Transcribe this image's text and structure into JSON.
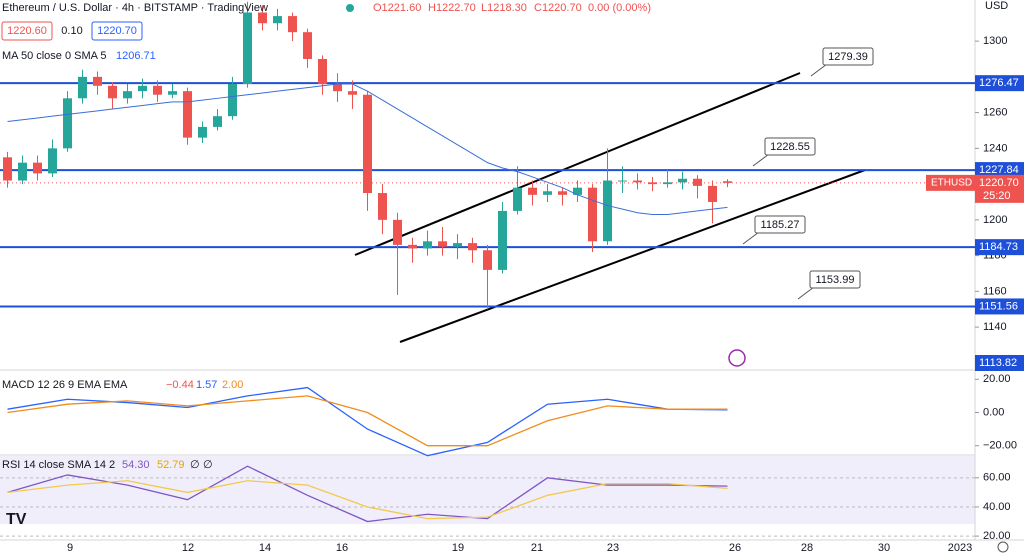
{
  "chart_data": {
    "type": "candlestick",
    "title": "Ethereum / U.S. Dollar · 4h · BITSTAMP · TradingView",
    "ohlc_header": [
      "O1221.60",
      "H1222.70",
      "L1218.30",
      "C1220.70",
      "0.00 (0.00%)"
    ],
    "bid": "1220.60",
    "spread": "0.10",
    "ask": "1220.70",
    "currency": "USD",
    "symbol": "ETHUSD",
    "last_price": "1220.70",
    "countdown": "25:20",
    "low_label": "1113.82",
    "up_color": "#26a69a",
    "down_color": "#ef5350",
    "open": [
      1235,
      1222,
      1232,
      1226,
      1240,
      1268,
      1280,
      1275,
      1268,
      1272,
      1275,
      1270,
      1272,
      1246,
      1252,
      1258,
      1276,
      1316,
      1310,
      1314,
      1305,
      1290,
      1276,
      1272,
      1270,
      1215,
      1200,
      1186,
      1184,
      1188,
      1185,
      1187,
      1183,
      1172,
      1205,
      1218,
      1214,
      1216,
      1214,
      1218,
      1188,
      1222,
      1222,
      1221,
      1220,
      1221,
      1223,
      1219,
      1221.6
    ],
    "high": [
      1238,
      1236,
      1236,
      1245,
      1272,
      1284,
      1283,
      1277,
      1276,
      1279,
      1278,
      1276,
      1274,
      1255,
      1262,
      1280,
      1322,
      1320,
      1318,
      1316,
      1307,
      1292,
      1282,
      1278,
      1272,
      1220,
      1204,
      1190,
      1194,
      1196,
      1192,
      1190,
      1186,
      1210,
      1230,
      1222,
      1220,
      1218,
      1222,
      1220,
      1240,
      1230,
      1226,
      1224,
      1228,
      1227,
      1225,
      1222,
      1222.7
    ],
    "low": [
      1218,
      1220,
      1222,
      1224,
      1238,
      1265,
      1270,
      1262,
      1265,
      1268,
      1266,
      1268,
      1242,
      1243,
      1250,
      1256,
      1274,
      1306,
      1306,
      1300,
      1285,
      1270,
      1266,
      1262,
      1205,
      1192,
      1158,
      1176,
      1180,
      1180,
      1178,
      1176,
      1150,
      1170,
      1203,
      1208,
      1210,
      1208,
      1210,
      1182,
      1186,
      1215,
      1217,
      1216,
      1218,
      1217,
      1212,
      1198,
      1218.3
    ],
    "close": [
      1222,
      1232,
      1226,
      1240,
      1268,
      1280,
      1275,
      1268,
      1272,
      1275,
      1270,
      1272,
      1246,
      1252,
      1258,
      1276,
      1316,
      1310,
      1314,
      1305,
      1290,
      1276,
      1272,
      1270,
      1215,
      1200,
      1186,
      1184,
      1188,
      1185,
      1187,
      1183,
      1172,
      1205,
      1218,
      1214,
      1216,
      1214,
      1218,
      1188,
      1222,
      1222,
      1221,
      1220,
      1221,
      1223,
      1219,
      1210,
      1220.7
    ],
    "ma": {
      "name": "MA 50 close 0 SMA 5",
      "value_label": "1206.71",
      "color": "#3a6fd8",
      "values": [
        1255,
        1256,
        1257,
        1258,
        1259,
        1260,
        1261,
        1262,
        1263,
        1264,
        1265,
        1266,
        1266,
        1267,
        1268,
        1269,
        1270,
        1271,
        1272,
        1273,
        1274,
        1275,
        1276,
        1276,
        1272,
        1267,
        1262,
        1257,
        1252,
        1247,
        1242,
        1237,
        1232,
        1229,
        1227,
        1224,
        1221,
        1218,
        1214,
        1211,
        1208,
        1206,
        1204,
        1203,
        1203,
        1204,
        1205,
        1206,
        1207
      ]
    },
    "ylim": [
      1116,
      1323
    ],
    "yticks": [
      1300,
      1260,
      1240,
      1200,
      1180,
      1160,
      1140
    ],
    "levels": [
      1276.47,
      1227.84,
      1184.73,
      1151.56
    ],
    "level_color": "#1e4fd8",
    "callouts": [
      1279.39,
      1228.55,
      1185.27,
      1153.99
    ],
    "x_labels": [
      "9",
      "12",
      "14",
      "16",
      "19",
      "21",
      "23",
      "26",
      "28",
      "30",
      "2023"
    ],
    "macd": {
      "title": "MACD 12 26 9 EMA EMA",
      "value_labels": [
        "−0.44",
        "1.57",
        "2.00"
      ],
      "ylim": [
        -25,
        25
      ],
      "yticks": [
        {
          "value": 20,
          "label": "20.00"
        },
        {
          "value": 0,
          "label": "0.00"
        },
        {
          "value": -20,
          "label": "−20.00"
        }
      ],
      "series": [
        {
          "name": "MACD",
          "color": "#2962ff",
          "values": [
            2,
            8,
            6,
            3,
            10,
            15,
            -10,
            -26,
            -18,
            5,
            8,
            2,
            1.57
          ]
        },
        {
          "name": "Signal",
          "color": "#f08c1e",
          "values": [
            0,
            5,
            7,
            4,
            7,
            10,
            0,
            -20,
            -20,
            -5,
            4,
            2,
            2.0
          ]
        }
      ]
    },
    "rsi": {
      "title": "RSI 14 close SMA 14 2",
      "value_labels": [
        "54.30",
        "52.79",
        "∅",
        "∅"
      ],
      "ylim": [
        18,
        75
      ],
      "yticks": [
        {
          "value": 60,
          "label": "60.00"
        },
        {
          "value": 40,
          "label": "40.00"
        },
        {
          "value": 20,
          "label": "20.00"
        }
      ],
      "series": [
        {
          "name": "RSI",
          "color": "#7e57c2",
          "values": [
            50,
            62,
            55,
            45,
            68,
            48,
            30,
            35,
            32,
            60,
            55,
            55,
            54.3
          ]
        },
        {
          "name": "RSI SMA",
          "color": "#f2c94c",
          "values": [
            50,
            55,
            58,
            50,
            58,
            55,
            40,
            32,
            33,
            48,
            56,
            56,
            52.79
          ]
        }
      ]
    }
  }
}
